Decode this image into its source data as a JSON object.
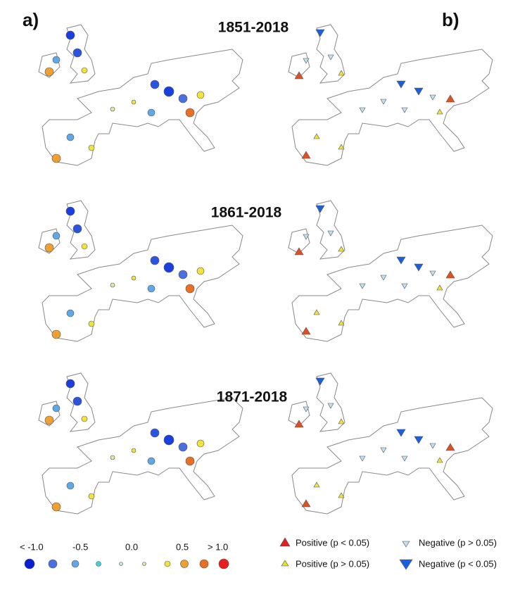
{
  "panels": {
    "a": {
      "label": "a)"
    },
    "b": {
      "label": "b)"
    }
  },
  "periods": [
    "1851-2018",
    "1861-2018",
    "1871-2018"
  ],
  "legend": {
    "magnitude_labels": [
      "< -1.0",
      "-0.5",
      "0.0",
      "0.5",
      "> 1.0"
    ],
    "trend_labels": [
      "Positive (p < 0.05)",
      "Positive (p > 0.05)",
      "Negative (p > 0.05)",
      "Negative (p < 0.05)"
    ]
  }
}
